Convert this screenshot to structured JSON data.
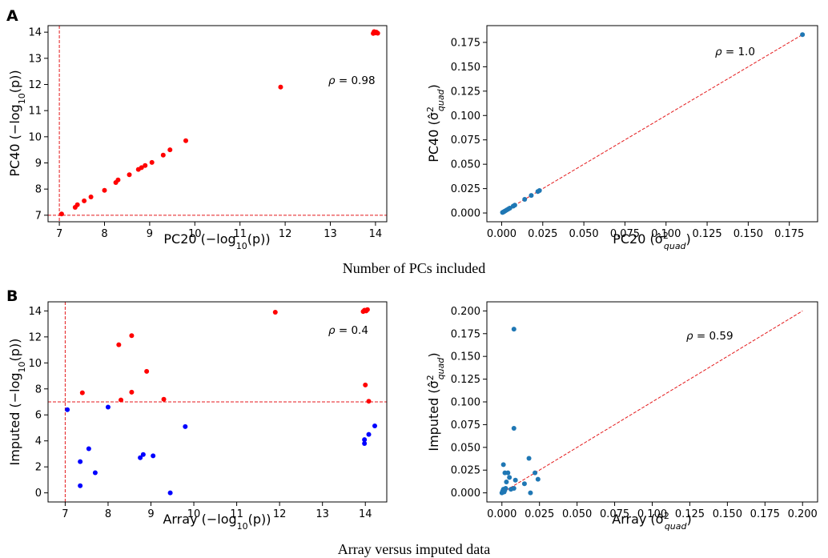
{
  "panels": {
    "A": {
      "letter": "A",
      "caption": "Number of PCs included"
    },
    "B": {
      "letter": "B",
      "caption": "Array versus imputed data"
    }
  },
  "chart_data": [
    {
      "id": "A-left",
      "type": "scatter",
      "xlabel": "PC20 (−log10(p))",
      "ylabel": "PC40 (−log10(p))",
      "xlim": [
        6.75,
        14.25
      ],
      "ylim": [
        6.75,
        14.25
      ],
      "xticks": [
        7,
        8,
        9,
        10,
        11,
        12,
        13,
        14
      ],
      "yticks": [
        7,
        8,
        9,
        10,
        11,
        12,
        13,
        14
      ],
      "threshold_lines": {
        "x": 7.0,
        "y": 7.0,
        "color": "#e41a1c"
      },
      "annotation": "ρ = 0.98",
      "point_colors": {
        "red": "#ff0000",
        "blue": "#0000ff"
      },
      "points": [
        {
          "x": 7.05,
          "y": 7.05,
          "c": "red"
        },
        {
          "x": 7.35,
          "y": 7.3,
          "c": "red"
        },
        {
          "x": 7.4,
          "y": 7.4,
          "c": "red"
        },
        {
          "x": 7.55,
          "y": 7.55,
          "c": "red"
        },
        {
          "x": 7.7,
          "y": 7.7,
          "c": "red"
        },
        {
          "x": 8.0,
          "y": 7.95,
          "c": "red"
        },
        {
          "x": 8.25,
          "y": 8.25,
          "c": "red"
        },
        {
          "x": 8.3,
          "y": 8.35,
          "c": "red"
        },
        {
          "x": 8.55,
          "y": 8.55,
          "c": "red"
        },
        {
          "x": 8.75,
          "y": 8.75,
          "c": "red"
        },
        {
          "x": 8.82,
          "y": 8.82,
          "c": "red"
        },
        {
          "x": 8.9,
          "y": 8.9,
          "c": "red"
        },
        {
          "x": 9.05,
          "y": 9.02,
          "c": "red"
        },
        {
          "x": 9.3,
          "y": 9.3,
          "c": "red"
        },
        {
          "x": 9.45,
          "y": 9.5,
          "c": "red"
        },
        {
          "x": 9.8,
          "y": 9.85,
          "c": "red"
        },
        {
          "x": 11.9,
          "y": 11.9,
          "c": "red"
        },
        {
          "x": 13.95,
          "y": 13.95,
          "c": "red"
        },
        {
          "x": 13.98,
          "y": 14.0,
          "c": "red"
        },
        {
          "x": 14.0,
          "y": 13.97,
          "c": "red"
        },
        {
          "x": 14.02,
          "y": 14.0,
          "c": "red"
        },
        {
          "x": 14.05,
          "y": 13.96,
          "c": "red"
        },
        {
          "x": 13.97,
          "y": 14.02,
          "c": "red"
        }
      ]
    },
    {
      "id": "A-right",
      "type": "scatter",
      "xlabel": "PC20 (σ̂²quad)",
      "ylabel": "PC40 (σ̂²quad)",
      "xlim": [
        -0.009,
        0.1922
      ],
      "ylim": [
        -0.009,
        0.1922
      ],
      "xticks": [
        0.0,
        0.025,
        0.05,
        0.075,
        0.1,
        0.125,
        0.15,
        0.175
      ],
      "yticks": [
        0.0,
        0.025,
        0.05,
        0.075,
        0.1,
        0.125,
        0.15,
        0.175
      ],
      "tick_labels": [
        "0.000",
        "0.025",
        "0.050",
        "0.075",
        "0.100",
        "0.125",
        "0.150",
        "0.175"
      ],
      "identity_line": [
        0.0,
        0.183
      ],
      "annotation": "ρ =  1.0",
      "point_color": "#1f77b4",
      "points": [
        {
          "x": 0.0005,
          "y": 0.0005
        },
        {
          "x": 0.001,
          "y": 0.001
        },
        {
          "x": 0.0015,
          "y": 0.0015
        },
        {
          "x": 0.002,
          "y": 0.002
        },
        {
          "x": 0.003,
          "y": 0.003
        },
        {
          "x": 0.004,
          "y": 0.004
        },
        {
          "x": 0.005,
          "y": 0.005
        },
        {
          "x": 0.007,
          "y": 0.007
        },
        {
          "x": 0.008,
          "y": 0.008
        },
        {
          "x": 0.014,
          "y": 0.014
        },
        {
          "x": 0.018,
          "y": 0.018
        },
        {
          "x": 0.022,
          "y": 0.022
        },
        {
          "x": 0.023,
          "y": 0.023
        },
        {
          "x": 0.183,
          "y": 0.183
        }
      ]
    },
    {
      "id": "B-left",
      "type": "scatter",
      "xlabel": "Array (−log10(p))",
      "ylabel": "Imputed (−log10(p))",
      "xlim": [
        6.6,
        14.5
      ],
      "ylim": [
        -0.7,
        14.7
      ],
      "xticks": [
        7,
        8,
        9,
        10,
        11,
        12,
        13,
        14
      ],
      "yticks": [
        0,
        2,
        4,
        6,
        8,
        10,
        12,
        14
      ],
      "threshold_lines": {
        "x": 7.0,
        "y": 7.0,
        "color": "#e41a1c"
      },
      "annotation": "ρ =  0.4",
      "point_colors": {
        "red": "#ff0000",
        "blue": "#0000ff"
      },
      "points": [
        {
          "x": 7.05,
          "y": 6.4,
          "c": "blue"
        },
        {
          "x": 7.35,
          "y": 2.4,
          "c": "blue"
        },
        {
          "x": 7.35,
          "y": 0.55,
          "c": "blue"
        },
        {
          "x": 7.4,
          "y": 7.7,
          "c": "red"
        },
        {
          "x": 7.55,
          "y": 3.4,
          "c": "blue"
        },
        {
          "x": 7.7,
          "y": 1.55,
          "c": "blue"
        },
        {
          "x": 8.0,
          "y": 6.6,
          "c": "blue"
        },
        {
          "x": 8.25,
          "y": 11.4,
          "c": "red"
        },
        {
          "x": 8.3,
          "y": 7.15,
          "c": "red"
        },
        {
          "x": 8.55,
          "y": 12.1,
          "c": "red"
        },
        {
          "x": 8.55,
          "y": 7.75,
          "c": "red"
        },
        {
          "x": 8.75,
          "y": 2.7,
          "c": "blue"
        },
        {
          "x": 8.82,
          "y": 2.95,
          "c": "blue"
        },
        {
          "x": 8.9,
          "y": 9.35,
          "c": "red"
        },
        {
          "x": 9.05,
          "y": 2.85,
          "c": "blue"
        },
        {
          "x": 9.3,
          "y": 7.2,
          "c": "red"
        },
        {
          "x": 9.45,
          "y": 0.0,
          "c": "blue"
        },
        {
          "x": 9.8,
          "y": 5.1,
          "c": "blue"
        },
        {
          "x": 11.9,
          "y": 13.9,
          "c": "red"
        },
        {
          "x": 13.95,
          "y": 13.95,
          "c": "red"
        },
        {
          "x": 13.98,
          "y": 14.05,
          "c": "red"
        },
        {
          "x": 14.02,
          "y": 14.0,
          "c": "red"
        },
        {
          "x": 14.05,
          "y": 14.1,
          "c": "red"
        },
        {
          "x": 14.0,
          "y": 8.3,
          "c": "red"
        },
        {
          "x": 14.08,
          "y": 7.05,
          "c": "red"
        },
        {
          "x": 13.98,
          "y": 4.1,
          "c": "blue"
        },
        {
          "x": 13.98,
          "y": 3.8,
          "c": "blue"
        },
        {
          "x": 14.08,
          "y": 4.5,
          "c": "blue"
        },
        {
          "x": 14.22,
          "y": 5.15,
          "c": "blue"
        }
      ]
    },
    {
      "id": "B-right",
      "type": "scatter",
      "xlabel": "Array (σ̂²quad)",
      "ylabel": "Imputed (σ̂²quad)",
      "xlim": [
        -0.01,
        0.21
      ],
      "ylim": [
        -0.01,
        0.21
      ],
      "xticks": [
        0.0,
        0.025,
        0.05,
        0.075,
        0.1,
        0.125,
        0.15,
        0.175,
        0.2
      ],
      "yticks": [
        0.0,
        0.025,
        0.05,
        0.075,
        0.1,
        0.125,
        0.15,
        0.175,
        0.2
      ],
      "tick_labels": [
        "0.000",
        "0.025",
        "0.050",
        "0.075",
        "0.100",
        "0.125",
        "0.150",
        "0.175",
        "0.200"
      ],
      "identity_line": [
        0.0,
        0.2
      ],
      "annotation": "ρ =  0.59",
      "point_color": "#1f77b4",
      "points": [
        {
          "x": 0.0,
          "y": 0.0
        },
        {
          "x": 0.0005,
          "y": 0.002
        },
        {
          "x": 0.001,
          "y": 0.004
        },
        {
          "x": 0.0015,
          "y": 0.001
        },
        {
          "x": 0.002,
          "y": 0.003
        },
        {
          "x": 0.0025,
          "y": 0.005
        },
        {
          "x": 0.001,
          "y": 0.031
        },
        {
          "x": 0.002,
          "y": 0.022
        },
        {
          "x": 0.004,
          "y": 0.022
        },
        {
          "x": 0.003,
          "y": 0.012
        },
        {
          "x": 0.005,
          "y": 0.017
        },
        {
          "x": 0.006,
          "y": 0.004
        },
        {
          "x": 0.008,
          "y": 0.005
        },
        {
          "x": 0.008,
          "y": 0.071
        },
        {
          "x": 0.008,
          "y": 0.18
        },
        {
          "x": 0.009,
          "y": 0.014
        },
        {
          "x": 0.015,
          "y": 0.01
        },
        {
          "x": 0.018,
          "y": 0.038
        },
        {
          "x": 0.019,
          "y": 0.0
        },
        {
          "x": 0.022,
          "y": 0.022
        },
        {
          "x": 0.024,
          "y": 0.015
        }
      ]
    }
  ]
}
